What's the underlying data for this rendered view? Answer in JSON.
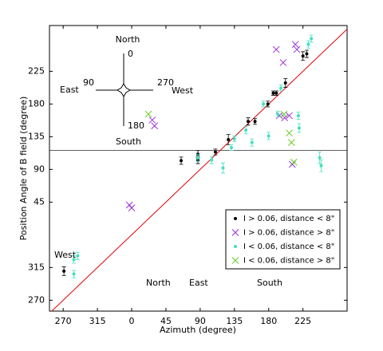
{
  "chart_data": {
    "type": "scatter",
    "xlabel": "Azimuth (degree)",
    "ylabel": "Position Angle of B field (degree)",
    "xlim": [
      -108,
      283
    ],
    "ylim": [
      -105,
      288
    ],
    "xticks": [
      {
        "value": -90,
        "label": "270"
      },
      {
        "value": -45,
        "label": "315"
      },
      0,
      45,
      90,
      135,
      180,
      225
    ],
    "yticks": [
      {
        "value": -90,
        "label": "270"
      },
      {
        "value": -45,
        "label": "315"
      },
      45,
      90,
      135,
      180,
      225
    ],
    "reference_line_y": 116,
    "diagonal_color": "#e00000",
    "legend": "lower right",
    "compass": {
      "north": "North",
      "zero": "0",
      "east": "East",
      "ninety": "90",
      "two_seventy": "270",
      "west": "West",
      "one_eighty": "180",
      "south": "South"
    },
    "annotations": [
      "South",
      "West",
      "North",
      "East",
      "South"
    ],
    "series": [
      {
        "name": "I > 0.06, distance < 8\"",
        "color": "#000000",
        "marker": "dot",
        "x": [
          -89,
          65,
          87,
          87,
          110,
          127,
          153,
          162,
          179,
          186,
          190,
          202,
          225,
          230
        ],
        "values": [
          -50,
          102,
          103,
          111,
          114,
          131,
          156,
          156,
          180,
          195,
          195,
          209,
          246,
          249
        ],
        "errors": [
          6,
          5,
          5,
          5,
          4,
          7,
          5,
          4,
          4,
          3,
          3,
          6,
          6,
          5
        ]
      },
      {
        "name": "I > 0.06, distance > 8\"",
        "color": "#9b30d9",
        "marker": "x",
        "x": [
          190,
          199,
          215,
          217,
          27,
          30,
          -3,
          0,
          194,
          201,
          207,
          211
        ],
        "values": [
          255,
          237,
          262,
          255,
          158,
          150,
          41,
          37,
          164,
          161,
          164,
          97
        ]
      },
      {
        "name": "I < 0.06, distance < 8\"",
        "color": "#40e0c0",
        "marker": "dot",
        "x": [
          -71,
          -76,
          -76,
          87,
          105,
          120,
          131,
          135,
          150,
          158,
          173,
          180,
          192,
          196,
          220,
          232,
          236,
          247,
          249,
          219
        ],
        "values": [
          -29,
          -34,
          -54,
          106,
          103,
          92,
          120,
          132,
          144,
          127,
          180,
          136,
          166,
          202,
          147,
          262,
          270,
          106,
          95,
          164
        ],
        "errors": [
          5,
          5,
          5,
          5,
          5,
          7,
          4,
          4,
          5,
          5,
          4,
          5,
          4,
          4,
          6,
          5,
          5,
          8,
          8,
          5
        ]
      },
      {
        "name": "I < 0.06, distance > 8\"",
        "color": "#66cc22",
        "marker": "x",
        "x": [
          22,
          200,
          207,
          210,
          213
        ],
        "values": [
          166,
          166,
          140,
          127,
          100
        ]
      }
    ]
  }
}
